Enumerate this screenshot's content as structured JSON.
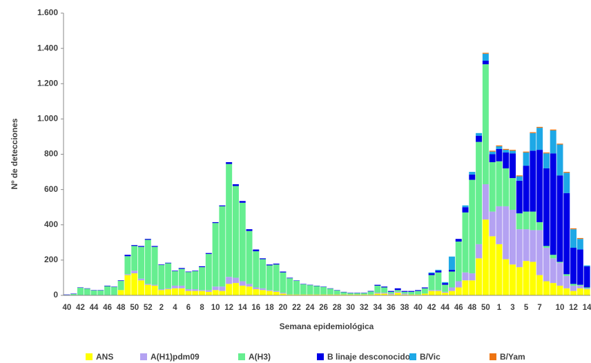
{
  "chart_data": {
    "type": "stacked-bar",
    "y_label": "Nº de detecciones",
    "x_label": "Semana epidemiológica",
    "ylim": [
      0,
      1600
    ],
    "yticks": [
      0,
      200,
      400,
      600,
      800,
      {
        "value": 1000,
        "label": "1.000"
      },
      {
        "value": 1200,
        "label": "1.200"
      },
      {
        "value": 1400,
        "label": "1.400"
      },
      {
        "value": 1600,
        "label": "1.600"
      }
    ],
    "categories": [
      "40",
      null,
      "42",
      null,
      "44",
      null,
      "46",
      null,
      "48",
      null,
      "50",
      null,
      "52",
      null,
      "2",
      null,
      "4",
      null,
      "6",
      null,
      "8",
      null,
      "10",
      null,
      "12",
      null,
      "14",
      null,
      "16",
      null,
      "18",
      null,
      "20",
      null,
      "22",
      null,
      "24",
      null,
      "26",
      null,
      "28",
      null,
      "30",
      null,
      "32",
      null,
      "34",
      null,
      "36",
      null,
      "38",
      null,
      "40",
      null,
      "42",
      null,
      "44",
      null,
      "46",
      null,
      "48",
      null,
      "50",
      null,
      "1",
      null,
      "3",
      null,
      "5",
      null,
      "7",
      null,
      null,
      "10",
      null,
      "12",
      null,
      "14"
    ],
    "series": [
      {
        "name": "ANS",
        "color": "#ffff00",
        "values": [
          0,
          0,
          0,
          0,
          0,
          0,
          0,
          0,
          30,
          115,
          125,
          85,
          60,
          55,
          30,
          35,
          40,
          40,
          25,
          25,
          25,
          20,
          30,
          25,
          65,
          70,
          55,
          50,
          35,
          30,
          25,
          20,
          10,
          5,
          5,
          5,
          5,
          5,
          5,
          5,
          5,
          5,
          5,
          5,
          5,
          5,
          10,
          10,
          5,
          15,
          5,
          5,
          5,
          10,
          25,
          25,
          15,
          25,
          45,
          85,
          85,
          210,
          430,
          335,
          290,
          205,
          175,
          160,
          195,
          190,
          115,
          80,
          70,
          55,
          40,
          25,
          40,
          35
        ]
      },
      {
        "name": "A(H1)pdm09",
        "color": "#b4a2f2",
        "values": [
          0,
          0,
          0,
          0,
          0,
          0,
          0,
          0,
          0,
          5,
          15,
          10,
          5,
          5,
          5,
          5,
          15,
          15,
          10,
          10,
          5,
          10,
          20,
          25,
          40,
          30,
          25,
          15,
          10,
          10,
          5,
          5,
          5,
          0,
          0,
          0,
          0,
          0,
          0,
          0,
          0,
          0,
          0,
          0,
          0,
          0,
          5,
          5,
          5,
          5,
          5,
          0,
          0,
          0,
          5,
          5,
          5,
          20,
          35,
          45,
          40,
          80,
          200,
          140,
          215,
          300,
          310,
          215,
          180,
          180,
          255,
          190,
          140,
          130,
          70,
          30,
          15,
          5
        ]
      },
      {
        "name": "A(H3)",
        "color": "#66ee90",
        "values": [
          3,
          8,
          43,
          38,
          28,
          28,
          52,
          48,
          52,
          102,
          140,
          180,
          250,
          215,
          137,
          142,
          82,
          95,
          97,
          102,
          130,
          205,
          360,
          455,
          640,
          520,
          445,
          300,
          205,
          165,
          140,
          150,
          115,
          92,
          78,
          58,
          53,
          48,
          43,
          33,
          23,
          13,
          8,
          8,
          8,
          17,
          40,
          30,
          10,
          10,
          10,
          15,
          20,
          30,
          85,
          100,
          40,
          90,
          225,
          340,
          530,
          580,
          680,
          280,
          255,
          215,
          180,
          90,
          100,
          105,
          45,
          10,
          20,
          5,
          10,
          10,
          5,
          5
        ]
      },
      {
        "name": "B linaje desconocido",
        "color": "#0000e6",
        "values": [
          2,
          2,
          2,
          2,
          2,
          2,
          3,
          2,
          3,
          8,
          5,
          5,
          5,
          5,
          3,
          3,
          3,
          5,
          3,
          3,
          5,
          5,
          5,
          5,
          10,
          10,
          10,
          10,
          10,
          5,
          5,
          5,
          5,
          3,
          2,
          2,
          2,
          2,
          2,
          2,
          2,
          2,
          2,
          2,
          2,
          3,
          5,
          5,
          5,
          10,
          5,
          5,
          5,
          5,
          10,
          10,
          10,
          10,
          15,
          30,
          30,
          35,
          20,
          45,
          70,
          90,
          140,
          185,
          260,
          345,
          410,
          440,
          575,
          490,
          460,
          205,
          200,
          120
        ]
      },
      {
        "name": "B/Vic",
        "color": "#1ea8e6",
        "values": [
          0,
          0,
          0,
          0,
          0,
          0,
          0,
          0,
          0,
          0,
          0,
          0,
          0,
          0,
          0,
          0,
          0,
          0,
          0,
          0,
          0,
          0,
          0,
          0,
          0,
          0,
          0,
          0,
          0,
          0,
          0,
          0,
          0,
          0,
          0,
          0,
          0,
          0,
          0,
          0,
          0,
          0,
          0,
          0,
          0,
          0,
          0,
          0,
          0,
          0,
          0,
          0,
          0,
          0,
          5,
          5,
          5,
          75,
          0,
          10,
          15,
          15,
          40,
          15,
          15,
          15,
          15,
          25,
          75,
          100,
          125,
          85,
          130,
          175,
          115,
          105,
          60,
          5
        ]
      },
      {
        "name": "B/Yam",
        "color": "#ee7412",
        "values": [
          0,
          0,
          0,
          0,
          0,
          0,
          0,
          0,
          0,
          0,
          0,
          0,
          0,
          0,
          0,
          0,
          0,
          0,
          0,
          0,
          0,
          0,
          0,
          0,
          0,
          0,
          0,
          0,
          0,
          0,
          0,
          0,
          0,
          0,
          0,
          0,
          0,
          0,
          0,
          0,
          0,
          0,
          0,
          0,
          0,
          0,
          0,
          0,
          0,
          0,
          0,
          0,
          0,
          0,
          0,
          0,
          0,
          0,
          0,
          0,
          0,
          0,
          5,
          5,
          5,
          5,
          5,
          5,
          5,
          5,
          5,
          5,
          5,
          5,
          5,
          5,
          5,
          0
        ]
      }
    ]
  }
}
